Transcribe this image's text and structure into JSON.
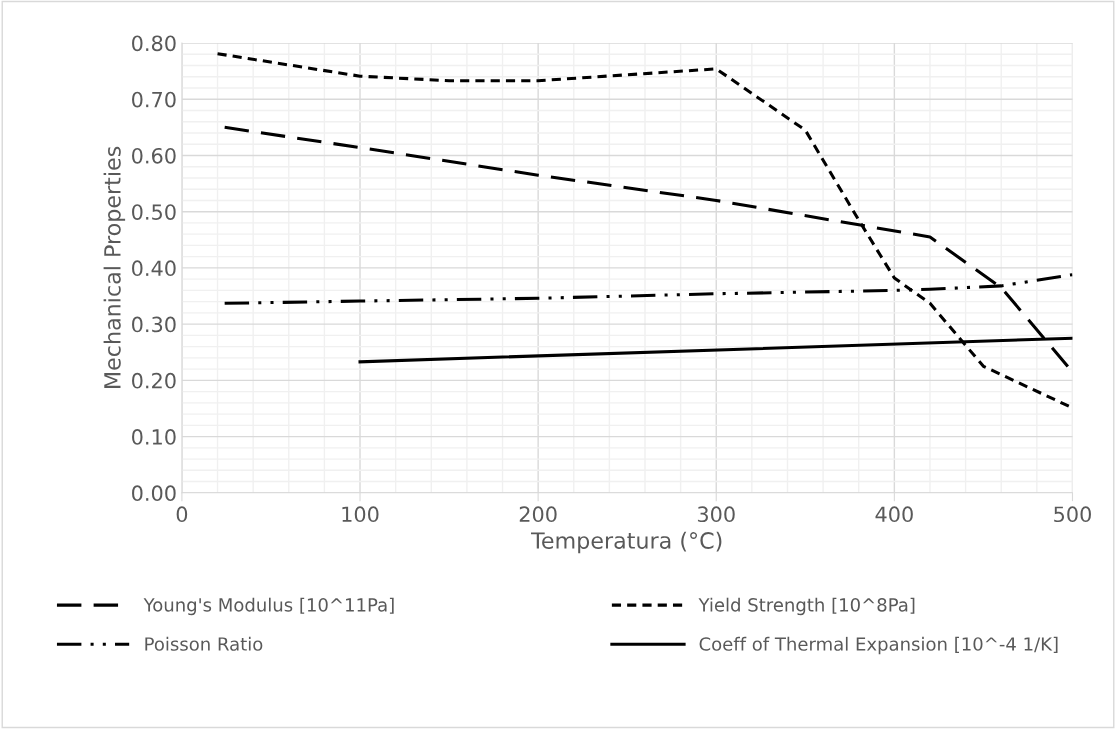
{
  "chart_data": {
    "type": "line",
    "xlabel": "Temperatura (°C)",
    "ylabel": "Mechanical Properties",
    "xlim": [
      0,
      500
    ],
    "xticks": [
      0,
      100,
      200,
      300,
      400,
      500
    ],
    "ylim": [
      0,
      0.8
    ],
    "yticks": [
      {
        "value": 0,
        "label": "0.00"
      },
      {
        "value": 0.1,
        "label": "0.10"
      },
      {
        "value": 0.2,
        "label": "0.20"
      },
      {
        "value": 0.3,
        "label": "0.30"
      },
      {
        "value": 0.4,
        "label": "0.40"
      },
      {
        "value": 0.5,
        "label": "0.50"
      },
      {
        "value": 0.6,
        "label": "0.60"
      },
      {
        "value": 0.7,
        "label": "0.70"
      },
      {
        "value": 0.8,
        "label": "0.80"
      }
    ],
    "grid": true,
    "legend": "bottom",
    "series": [
      {
        "name": "Young's Modulus [10^11Pa]",
        "color": "#000000",
        "line_style": "longdash",
        "x": [
          24,
          100,
          200,
          300,
          420,
          460,
          500
        ],
        "values": [
          0.65,
          0.614,
          0.565,
          0.52,
          0.455,
          0.365,
          0.215
        ]
      },
      {
        "name": "Poisson Ratio",
        "color": "#000000",
        "line_style": "dashdotdot",
        "x": [
          24,
          100,
          200,
          300,
          400,
          420,
          460,
          500
        ],
        "values": [
          0.337,
          0.341,
          0.346,
          0.354,
          0.36,
          0.362,
          0.368,
          0.388
        ]
      },
      {
        "name": "Yield Strength [10^8Pa]",
        "color": "#000000",
        "line_style": "dashed",
        "x": [
          20,
          100,
          150,
          200,
          300,
          350,
          380,
          400,
          420,
          450,
          500
        ],
        "values": [
          0.781,
          0.741,
          0.733,
          0.733,
          0.754,
          0.645,
          0.485,
          0.382,
          0.337,
          0.225,
          0.151
        ]
      },
      {
        "name": "Coeff of Thermal Expansion [10^-4 1/K]",
        "color": "#000000",
        "line_style": "solid",
        "x": [
          100,
          500
        ],
        "values": [
          0.233,
          0.275
        ]
      }
    ]
  }
}
